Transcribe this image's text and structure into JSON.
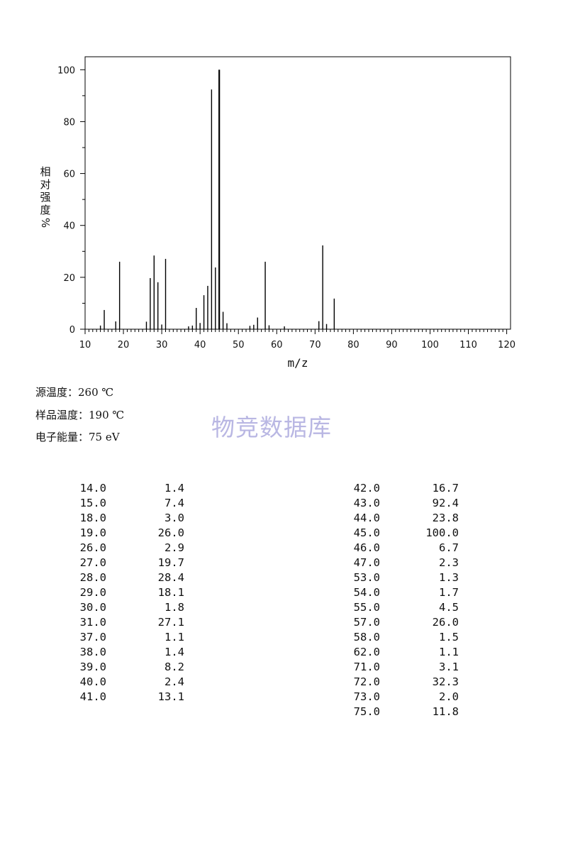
{
  "chart_data": {
    "type": "bar",
    "xlabel": "m/z",
    "ylabel": [
      "相",
      "对",
      "强",
      "度",
      "%"
    ],
    "xlim": [
      10,
      121
    ],
    "ylim": [
      0,
      105
    ],
    "x_ticks": [
      "10",
      "20",
      "30",
      "40",
      "50",
      "60",
      "70",
      "80",
      "90",
      "100",
      "110",
      "120"
    ],
    "y_ticks": [
      "0",
      "20",
      "40",
      "60",
      "80",
      "100"
    ],
    "grid": false,
    "series": [
      {
        "x": [
          14.0,
          15.0,
          18.0,
          19.0,
          26.0,
          27.0,
          28.0,
          29.0,
          30.0,
          31.0,
          37.0,
          38.0,
          39.0,
          40.0,
          41.0,
          42.0,
          43.0,
          44.0,
          45.0,
          46.0,
          47.0,
          53.0,
          54.0,
          55.0,
          57.0,
          58.0,
          62.0,
          71.0,
          72.0,
          73.0,
          75.0
        ],
        "values": [
          1.4,
          7.4,
          3.0,
          26.0,
          2.9,
          19.7,
          28.4,
          18.1,
          1.8,
          27.1,
          1.1,
          1.4,
          8.2,
          2.4,
          13.1,
          16.7,
          92.4,
          23.8,
          100.0,
          6.7,
          2.3,
          1.3,
          1.7,
          4.5,
          26.0,
          1.5,
          1.1,
          3.1,
          32.3,
          2.0,
          11.8
        ]
      }
    ]
  },
  "conditions": {
    "source_temp": "源温度：260 ℃",
    "sample_temp": "样品温度：190 ℃",
    "electron_energy": "电子能量：75 eV"
  },
  "watermark": "物竞数据库",
  "peak_table": {
    "left": [
      [
        "14.0",
        "1.4"
      ],
      [
        "15.0",
        "7.4"
      ],
      [
        "18.0",
        "3.0"
      ],
      [
        "19.0",
        "26.0"
      ],
      [
        "26.0",
        "2.9"
      ],
      [
        "27.0",
        "19.7"
      ],
      [
        "28.0",
        "28.4"
      ],
      [
        "29.0",
        "18.1"
      ],
      [
        "30.0",
        "1.8"
      ],
      [
        "31.0",
        "27.1"
      ],
      [
        "37.0",
        "1.1"
      ],
      [
        "38.0",
        "1.4"
      ],
      [
        "39.0",
        "8.2"
      ],
      [
        "40.0",
        "2.4"
      ],
      [
        "41.0",
        "13.1"
      ]
    ],
    "right": [
      [
        "42.0",
        "16.7"
      ],
      [
        "43.0",
        "92.4"
      ],
      [
        "44.0",
        "23.8"
      ],
      [
        "45.0",
        "100.0"
      ],
      [
        "46.0",
        "6.7"
      ],
      [
        "47.0",
        "2.3"
      ],
      [
        "53.0",
        "1.3"
      ],
      [
        "54.0",
        "1.7"
      ],
      [
        "55.0",
        "4.5"
      ],
      [
        "57.0",
        "26.0"
      ],
      [
        "58.0",
        "1.5"
      ],
      [
        "62.0",
        "1.1"
      ],
      [
        "71.0",
        "3.1"
      ],
      [
        "72.0",
        "32.3"
      ],
      [
        "73.0",
        "2.0"
      ],
      [
        "75.0",
        "11.8"
      ]
    ]
  }
}
